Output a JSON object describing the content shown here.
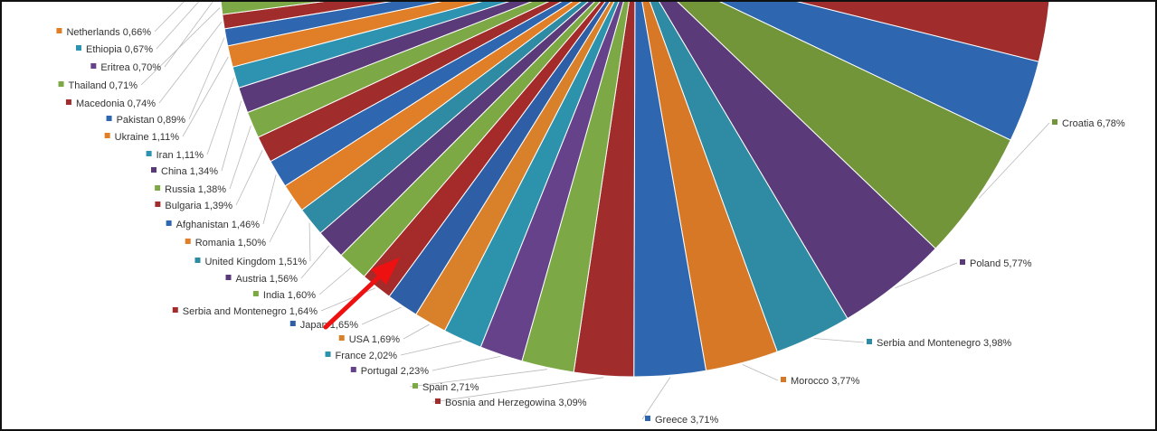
{
  "chart_data": {
    "type": "pie",
    "slices": [
      {
        "label": "Croatia 6,78%",
        "value": 6.78,
        "color": "#72953a",
        "labelSide": "right"
      },
      {
        "label": "Poland 5,77%",
        "value": 5.77,
        "color": "#5b3a7a",
        "labelSide": "right"
      },
      {
        "label": "Serbia and Montenegro 3,98%",
        "value": 3.98,
        "color": "#2e8ba3",
        "labelSide": "right"
      },
      {
        "label": "Morocco 3,77%",
        "value": 3.77,
        "color": "#d67826",
        "labelSide": "right"
      },
      {
        "label": "Greece 3,71%",
        "value": 3.71,
        "color": "#2f66b0",
        "labelSide": "bottom"
      },
      {
        "label": "Bosnia and Herzegowina 3,09%",
        "value": 3.09,
        "color": "#a12c2c",
        "labelSide": "bottom"
      },
      {
        "label": "Spain 2,71%",
        "value": 2.71,
        "color": "#7ca846",
        "labelSide": "left"
      },
      {
        "label": "Portugal 2,23%",
        "value": 2.23,
        "color": "#654289",
        "labelSide": "left"
      },
      {
        "label": "France 2,02%",
        "value": 2.02,
        "color": "#2d93ad",
        "labelSide": "left"
      },
      {
        "label": "USA 1,69%",
        "value": 1.69,
        "color": "#d9802b",
        "labelSide": "left"
      },
      {
        "label": "Japan 1,65%",
        "value": 1.65,
        "color": "#2e5fa6",
        "labelSide": "left"
      },
      {
        "label": "Serbia and Montenegro 1,64%",
        "value": 1.64,
        "color": "#a52a2a",
        "labelSide": "left"
      },
      {
        "label": "India 1,60%",
        "value": 1.6,
        "color": "#7da945",
        "labelSide": "left"
      },
      {
        "label": "Austria 1,56%",
        "value": 1.56,
        "color": "#5b3a7a",
        "labelSide": "left"
      },
      {
        "label": "United Kingdom 1,51%",
        "value": 1.51,
        "color": "#2e8ba3",
        "labelSide": "left"
      },
      {
        "label": "Romania 1,50%",
        "value": 1.5,
        "color": "#e07f27",
        "labelSide": "left"
      },
      {
        "label": "Afghanistan 1,46%",
        "value": 1.46,
        "color": "#2f66b0",
        "labelSide": "left"
      },
      {
        "label": "Bulgaria 1,39%",
        "value": 1.39,
        "color": "#a12c2c",
        "labelSide": "left"
      },
      {
        "label": "Russia 1,38%",
        "value": 1.38,
        "color": "#7ca846",
        "labelSide": "left"
      },
      {
        "label": "China 1,34%",
        "value": 1.34,
        "color": "#5b3a7a",
        "labelSide": "left"
      },
      {
        "label": "Iran 1,11%",
        "value": 1.11,
        "color": "#2e93b0",
        "labelSide": "left"
      },
      {
        "label": "Ukraine 1,11%",
        "value": 1.11,
        "color": "#e07f27",
        "labelSide": "left"
      },
      {
        "label": "Pakistan 0,89%",
        "value": 0.89,
        "color": "#2f66b0",
        "labelSide": "left"
      },
      {
        "label": "Macedonia 0,74%",
        "value": 0.74,
        "color": "#a12c2c",
        "labelSide": "left"
      },
      {
        "label": "Thailand 0,71%",
        "value": 0.71,
        "color": "#7ca846",
        "labelSide": "left"
      },
      {
        "label": "Eritrea 0,70%",
        "value": 0.7,
        "color": "#654289",
        "labelSide": "left"
      },
      {
        "label": "Ethiopia 0,67%",
        "value": 0.67,
        "color": "#2e93b0",
        "labelSide": "left"
      },
      {
        "label": "Netherlands 0,66%",
        "value": 0.66,
        "color": "#e07f27",
        "labelSide": "left"
      }
    ],
    "arrow_color": "#ee1111"
  }
}
